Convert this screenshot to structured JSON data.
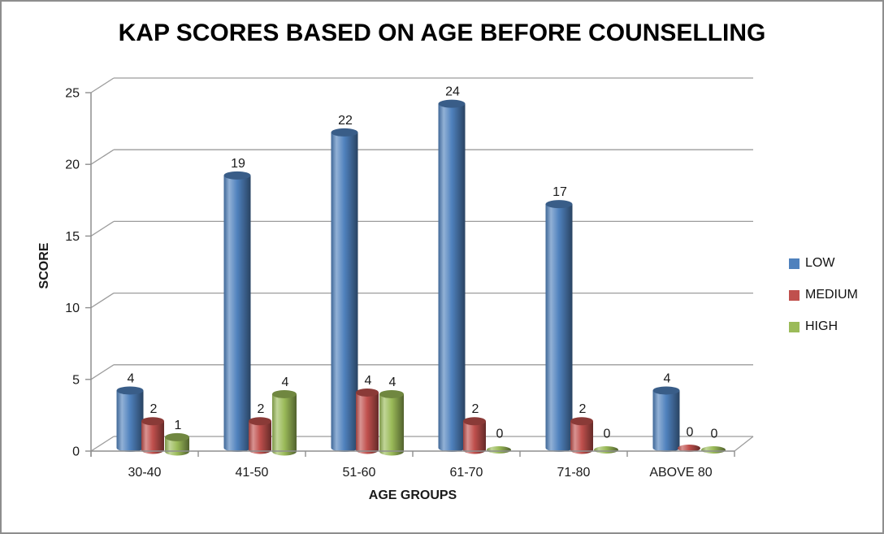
{
  "chart_data": {
    "type": "bar",
    "subtype": "3d-cylinder",
    "title": "KAP SCORES BASED ON AGE BEFORE COUNSELLING",
    "categories": [
      "30-40",
      "41-50",
      "51-60",
      "61-70",
      "71-80",
      "ABOVE 80"
    ],
    "series": [
      {
        "name": "LOW",
        "color": "#4F81BD",
        "values": [
          4,
          19,
          22,
          24,
          17,
          4
        ]
      },
      {
        "name": "MEDIUM",
        "color": "#C0504D",
        "values": [
          2,
          2,
          4,
          2,
          2,
          0
        ]
      },
      {
        "name": "HIGH",
        "color": "#9BBB59",
        "values": [
          1,
          4,
          4,
          0,
          0,
          0
        ]
      }
    ],
    "xlabel": "AGE GROUPS",
    "ylabel": "SCORE",
    "ylim": [
      0,
      25
    ],
    "ytick_interval": 5,
    "ytick_labels": [
      "0",
      "5",
      "10",
      "15",
      "20",
      "25"
    ],
    "grid": true,
    "legend_position": "right",
    "data_labels": true,
    "colors": {
      "gridline": "#9C9C9C",
      "axis": "#8F8F8F",
      "text": "#1A1A1A",
      "frame_border": "#8E8E8E",
      "background": "#FFFFFF"
    }
  }
}
